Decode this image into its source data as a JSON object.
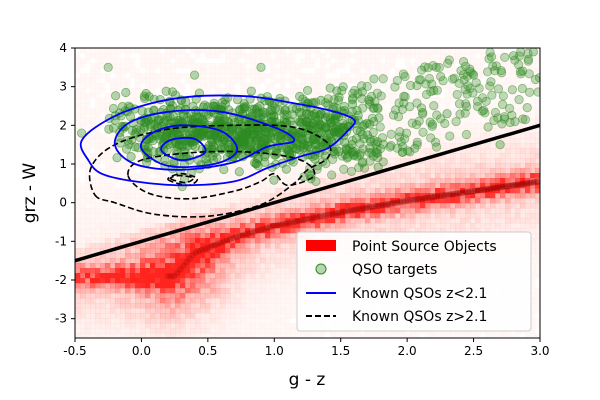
{
  "chart_data": {
    "type": "scatter",
    "xlabel": "g - z",
    "ylabel": "grz - W",
    "xlim": [
      -0.5,
      3.0
    ],
    "ylim": [
      -3.5,
      4.0
    ],
    "xticks": [
      -0.5,
      0.0,
      0.5,
      1.0,
      1.5,
      2.0,
      2.5,
      3.0
    ],
    "xtick_labels": [
      "-0.5",
      "0.0",
      "0.5",
      "1.0",
      "1.5",
      "2.0",
      "2.5",
      "3.0"
    ],
    "yticks": [
      -3,
      -2,
      -1,
      0,
      1,
      2,
      3,
      4
    ],
    "ytick_labels": [
      "-3",
      "-2",
      "-1",
      "0",
      "1",
      "2",
      "3",
      "4"
    ],
    "legend_position": "lower-right",
    "colors": {
      "point_sources": "#ff0000",
      "qso_targets": "#2e8b22",
      "low_z": "#0000ff",
      "high_z": "#000000",
      "cut_line": "#000000"
    },
    "legend": [
      {
        "label": "Point Source Objects",
        "style": "patch"
      },
      {
        "label": "QSO targets",
        "style": "circle"
      },
      {
        "label": "Known QSOs z<2.1",
        "style": "solid"
      },
      {
        "label": "Known QSOs z>2.1",
        "style": "dashed"
      }
    ],
    "selection_line": {
      "x": [
        -0.5,
        3.0
      ],
      "y": [
        -1.5,
        2.0
      ]
    },
    "point_source_density": {
      "description": "hexbin density of stellar point sources",
      "stellar_locus": [
        [
          0.25,
          -1.9
        ],
        [
          0.4,
          -1.3
        ],
        [
          0.7,
          -0.9
        ],
        [
          1.0,
          -0.6
        ],
        [
          1.5,
          -0.25
        ],
        [
          2.0,
          0.05
        ],
        [
          2.5,
          0.3
        ],
        [
          3.0,
          0.55
        ]
      ],
      "halo_center": [
        0.3,
        -1.7
      ]
    },
    "qso_targets": {
      "description": "green scatter points above the selection line",
      "core": {
        "x_range": [
          -0.1,
          1.7
        ],
        "y_range": [
          0.6,
          2.8
        ]
      },
      "outliers": [
        [
          -0.25,
          3.5
        ],
        [
          1.75,
          3.2
        ],
        [
          2.2,
          2.9
        ],
        [
          2.5,
          3.3
        ],
        [
          2.8,
          3.8
        ],
        [
          2.95,
          3.9
        ],
        [
          -0.45,
          1.8
        ],
        [
          2.7,
          1.5
        ],
        [
          2.3,
          2.3
        ],
        [
          0.4,
          3.3
        ],
        [
          0.9,
          3.5
        ]
      ]
    },
    "known_qsos_low_z": [
      {
        "level": 1,
        "points": [
          [
            -0.45,
            1.6
          ],
          [
            -0.4,
            1.1
          ],
          [
            -0.3,
            0.75
          ],
          [
            -0.05,
            0.55
          ],
          [
            0.3,
            0.45
          ],
          [
            0.7,
            0.55
          ],
          [
            0.95,
            0.9
          ],
          [
            1.2,
            1.2
          ],
          [
            1.4,
            1.4
          ],
          [
            1.55,
            1.85
          ],
          [
            1.6,
            2.15
          ],
          [
            1.4,
            2.4
          ],
          [
            1.1,
            2.6
          ],
          [
            0.8,
            2.75
          ],
          [
            0.4,
            2.75
          ],
          [
            0.05,
            2.55
          ],
          [
            -0.25,
            2.15
          ]
        ]
      },
      {
        "level": 2,
        "points": [
          [
            -0.2,
            1.5
          ],
          [
            -0.05,
            1.0
          ],
          [
            0.3,
            0.85
          ],
          [
            0.7,
            1.05
          ],
          [
            0.95,
            1.45
          ],
          [
            1.15,
            1.6
          ],
          [
            1.0,
            1.95
          ],
          [
            0.6,
            2.35
          ],
          [
            0.2,
            2.35
          ],
          [
            -0.1,
            2.05
          ]
        ]
      },
      {
        "level": 3,
        "points": [
          [
            0.0,
            1.4
          ],
          [
            0.2,
            0.95
          ],
          [
            0.55,
            1.0
          ],
          [
            0.72,
            1.35
          ],
          [
            0.6,
            1.85
          ],
          [
            0.3,
            2.0
          ],
          [
            0.08,
            1.8
          ]
        ]
      },
      {
        "level": 4,
        "points": [
          [
            0.15,
            1.35
          ],
          [
            0.3,
            1.1
          ],
          [
            0.48,
            1.3
          ],
          [
            0.4,
            1.65
          ],
          [
            0.22,
            1.62
          ]
        ]
      }
    ],
    "known_qsos_high_z": [
      {
        "level": 1,
        "points": [
          [
            -0.35,
            0.2
          ],
          [
            -0.2,
            0.0
          ],
          [
            0.1,
            -0.3
          ],
          [
            0.5,
            -0.35
          ],
          [
            0.9,
            -0.05
          ],
          [
            1.15,
            0.5
          ],
          [
            1.25,
            0.85
          ],
          [
            1.4,
            1.15
          ],
          [
            1.4,
            1.55
          ],
          [
            1.15,
            1.95
          ],
          [
            0.7,
            2.0
          ],
          [
            0.2,
            1.9
          ],
          [
            -0.2,
            1.5
          ],
          [
            -0.38,
            0.9
          ]
        ]
      },
      {
        "level": 2,
        "points": [
          [
            -0.1,
            0.7
          ],
          [
            0.05,
            0.25
          ],
          [
            0.35,
            0.1
          ],
          [
            0.7,
            0.3
          ],
          [
            0.9,
            0.55
          ],
          [
            1.0,
            0.75
          ],
          [
            1.1,
            0.45
          ],
          [
            1.3,
            0.7
          ],
          [
            1.2,
            1.1
          ],
          [
            0.85,
            1.3
          ],
          [
            0.4,
            1.3
          ],
          [
            0.0,
            1.1
          ]
        ]
      },
      {
        "level": 3,
        "points": [
          [
            0.2,
            0.6
          ],
          [
            0.35,
            0.45
          ],
          [
            0.42,
            0.62
          ],
          [
            0.3,
            0.75
          ]
        ]
      },
      {
        "level": 4,
        "points": [
          [
            0.22,
            0.62
          ],
          [
            0.33,
            0.52
          ],
          [
            0.39,
            0.64
          ],
          [
            0.28,
            0.7
          ]
        ]
      }
    ]
  }
}
